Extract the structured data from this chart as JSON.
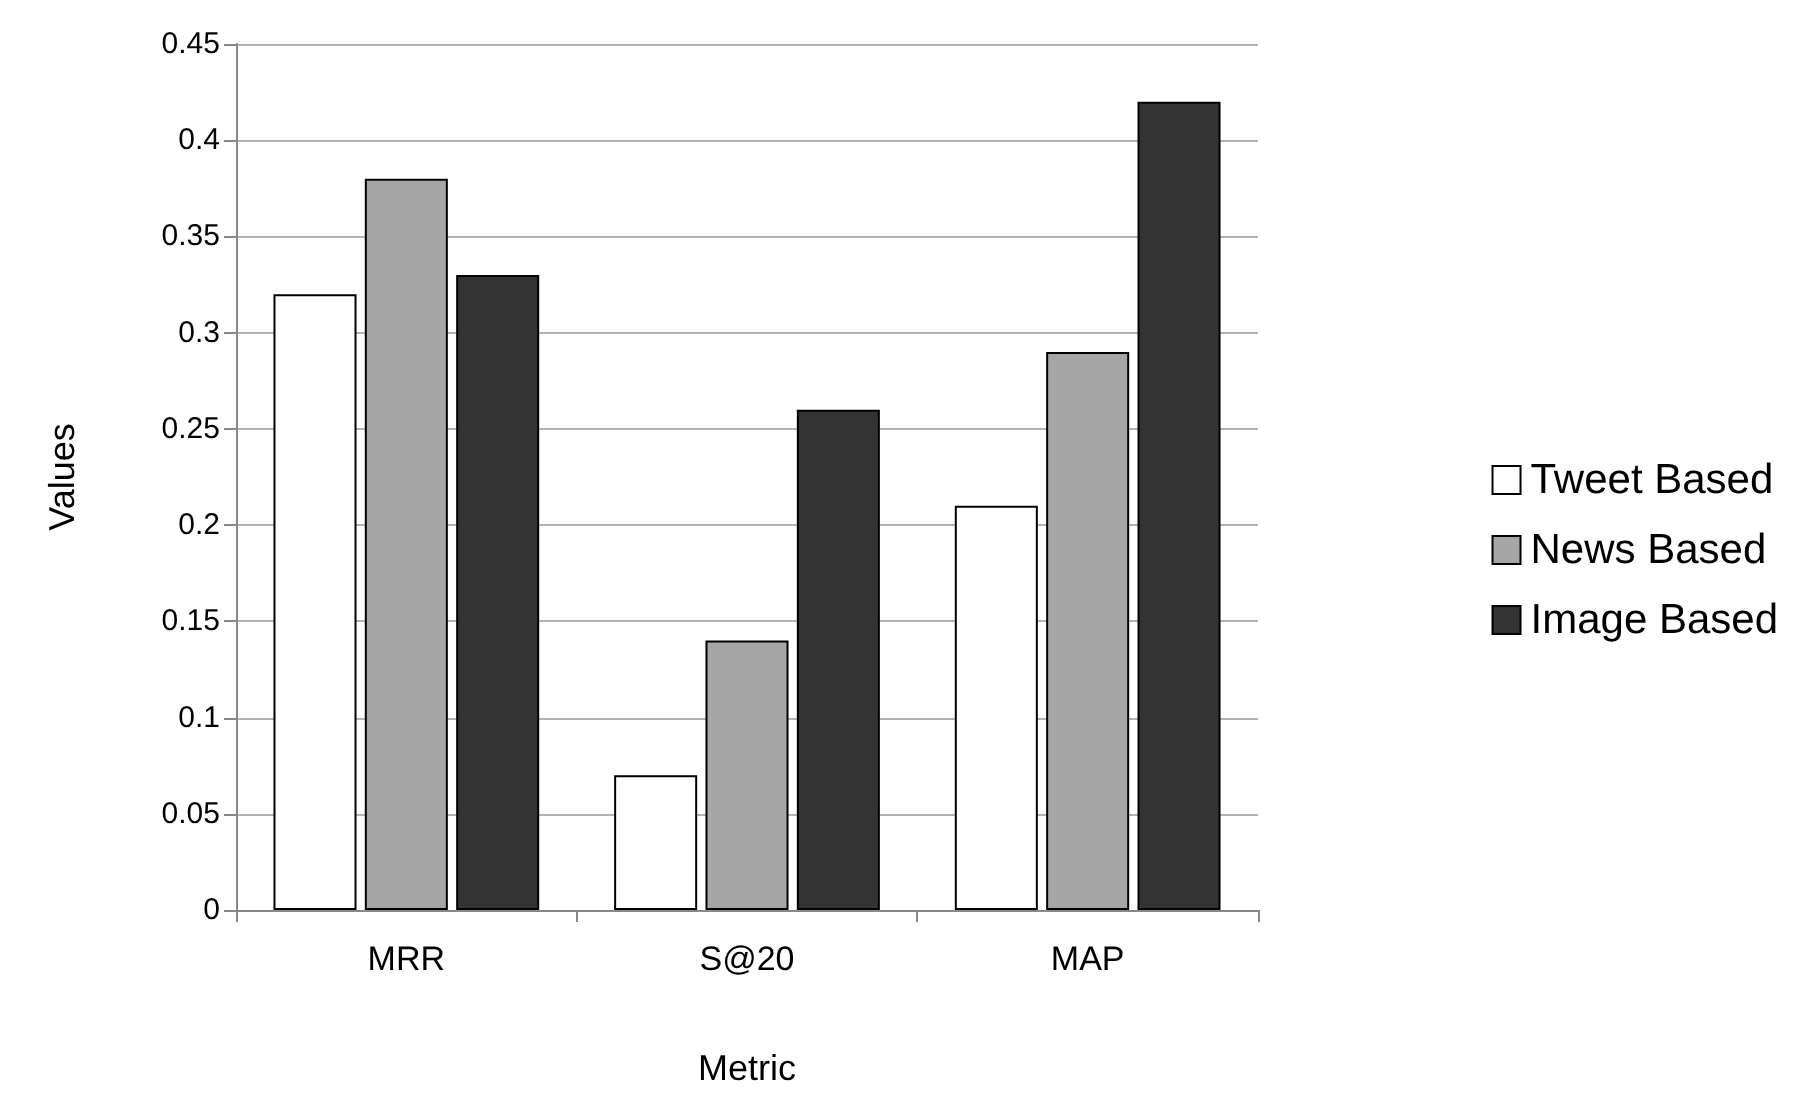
{
  "chart_data": {
    "type": "bar",
    "xlabel": "Metric",
    "ylabel": "Values",
    "categories": [
      "MRR",
      "S@20",
      "MAP"
    ],
    "series": [
      {
        "name": "Tweet Based",
        "color": "#ffffff",
        "values": [
          0.32,
          0.07,
          0.21
        ]
      },
      {
        "name": "News Based",
        "color": "#a6a6a6",
        "values": [
          0.38,
          0.14,
          0.29
        ]
      },
      {
        "name": "Image Based",
        "color": "#333333",
        "values": [
          0.33,
          0.26,
          0.42
        ]
      }
    ],
    "ylim": [
      0,
      0.45
    ],
    "yticks": [
      0,
      0.05,
      0.1,
      0.15,
      0.2,
      0.25,
      0.3,
      0.35,
      0.4,
      0.45
    ],
    "grid": "y",
    "legend": "right"
  }
}
